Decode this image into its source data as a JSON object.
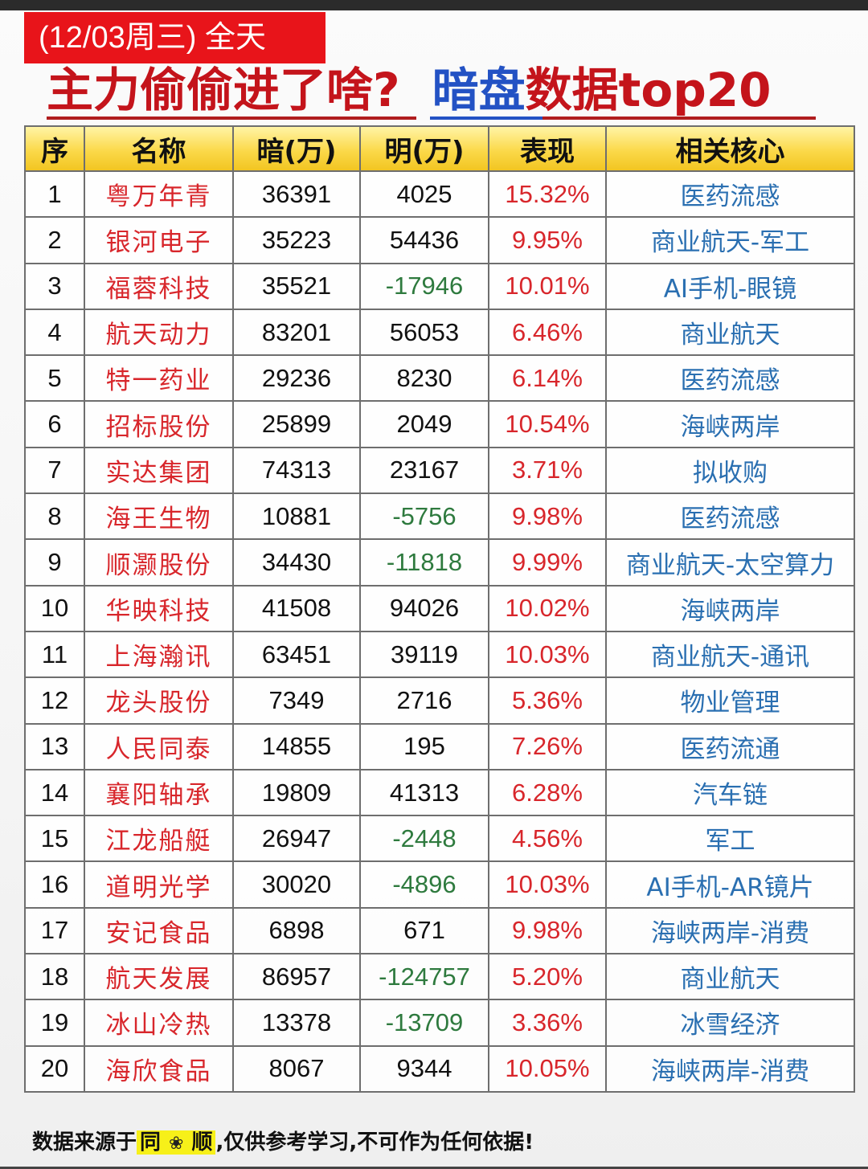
{
  "header": {
    "date_badge": "(12/03周三) 全天",
    "headline_part1": "主力偷偷进了啥?",
    "headline_part2_blue": "暗盘",
    "headline_part3": "数据top20",
    "colors": {
      "badge_bg": "#e8141a",
      "headline_red": "#c4141b",
      "headline_blue": "#2352c4"
    }
  },
  "table": {
    "columns": [
      "序",
      "名称",
      "暗(万)",
      "明(万)",
      "表现",
      "相关核心"
    ],
    "rows": [
      {
        "idx": "1",
        "name": "粤万年青",
        "dark": "36391",
        "lit": "4025",
        "lit_negative": false,
        "perf": "15.32%",
        "core": "医药流感"
      },
      {
        "idx": "2",
        "name": "银河电子",
        "dark": "35223",
        "lit": "54436",
        "lit_negative": false,
        "perf": "9.95%",
        "core": "商业航天-军工"
      },
      {
        "idx": "3",
        "name": "福蓉科技",
        "dark": "35521",
        "lit": "-17946",
        "lit_negative": true,
        "perf": "10.01%",
        "core": "AI手机-眼镜"
      },
      {
        "idx": "4",
        "name": "航天动力",
        "dark": "83201",
        "lit": "56053",
        "lit_negative": false,
        "perf": "6.46%",
        "core": "商业航天"
      },
      {
        "idx": "5",
        "name": "特一药业",
        "dark": "29236",
        "lit": "8230",
        "lit_negative": false,
        "perf": "6.14%",
        "core": "医药流感"
      },
      {
        "idx": "6",
        "name": "招标股份",
        "dark": "25899",
        "lit": "2049",
        "lit_negative": false,
        "perf": "10.54%",
        "core": "海峡两岸"
      },
      {
        "idx": "7",
        "name": "实达集团",
        "dark": "74313",
        "lit": "23167",
        "lit_negative": false,
        "perf": "3.71%",
        "core": "拟收购"
      },
      {
        "idx": "8",
        "name": "海王生物",
        "dark": "10881",
        "lit": "-5756",
        "lit_negative": true,
        "perf": "9.98%",
        "core": "医药流感"
      },
      {
        "idx": "9",
        "name": "顺灏股份",
        "dark": "34430",
        "lit": "-11818",
        "lit_negative": true,
        "perf": "9.99%",
        "core": "商业航天-太空算力"
      },
      {
        "idx": "10",
        "name": "华映科技",
        "dark": "41508",
        "lit": "94026",
        "lit_negative": false,
        "perf": "10.02%",
        "core": "海峡两岸"
      },
      {
        "idx": "11",
        "name": "上海瀚讯",
        "dark": "63451",
        "lit": "39119",
        "lit_negative": false,
        "perf": "10.03%",
        "core": "商业航天-通讯"
      },
      {
        "idx": "12",
        "name": "龙头股份",
        "dark": "7349",
        "lit": "2716",
        "lit_negative": false,
        "perf": "5.36%",
        "core": "物业管理"
      },
      {
        "idx": "13",
        "name": "人民同泰",
        "dark": "14855",
        "lit": "195",
        "lit_negative": false,
        "perf": "7.26%",
        "core": "医药流通"
      },
      {
        "idx": "14",
        "name": "襄阳轴承",
        "dark": "19809",
        "lit": "41313",
        "lit_negative": false,
        "perf": "6.28%",
        "core": "汽车链"
      },
      {
        "idx": "15",
        "name": "江龙船艇",
        "dark": "26947",
        "lit": "-2448",
        "lit_negative": true,
        "perf": "4.56%",
        "core": "军工"
      },
      {
        "idx": "16",
        "name": "道明光学",
        "dark": "30020",
        "lit": "-4896",
        "lit_negative": true,
        "perf": "10.03%",
        "core": "AI手机-AR镜片"
      },
      {
        "idx": "17",
        "name": "安记食品",
        "dark": "6898",
        "lit": "671",
        "lit_negative": false,
        "perf": "9.98%",
        "core": "海峡两岸-消费"
      },
      {
        "idx": "18",
        "name": "航天发展",
        "dark": "86957",
        "lit": "-124757",
        "lit_negative": true,
        "perf": "5.20%",
        "core": "商业航天"
      },
      {
        "idx": "19",
        "name": "冰山冷热",
        "dark": "13378",
        "lit": "-13709",
        "lit_negative": true,
        "perf": "3.36%",
        "core": "冰雪经济"
      },
      {
        "idx": "20",
        "name": "海欣食品",
        "dark": "8067",
        "lit": "9344",
        "lit_negative": false,
        "perf": "10.05%",
        "core": "海峡两岸-消费"
      }
    ],
    "colors": {
      "header_bg": "#fbd94a",
      "name": "#d8262b",
      "negative": "#2e7a3e",
      "perf": "#d8262b",
      "core": "#2a6fb1"
    }
  },
  "footer": {
    "prefix": "数据来源于",
    "source_part1": "同",
    "source_icon": "flower-icon",
    "source_glyph": "❀",
    "source_part2": "顺",
    "suffix": ",仅供参考学习,不可作为任何依据!"
  }
}
